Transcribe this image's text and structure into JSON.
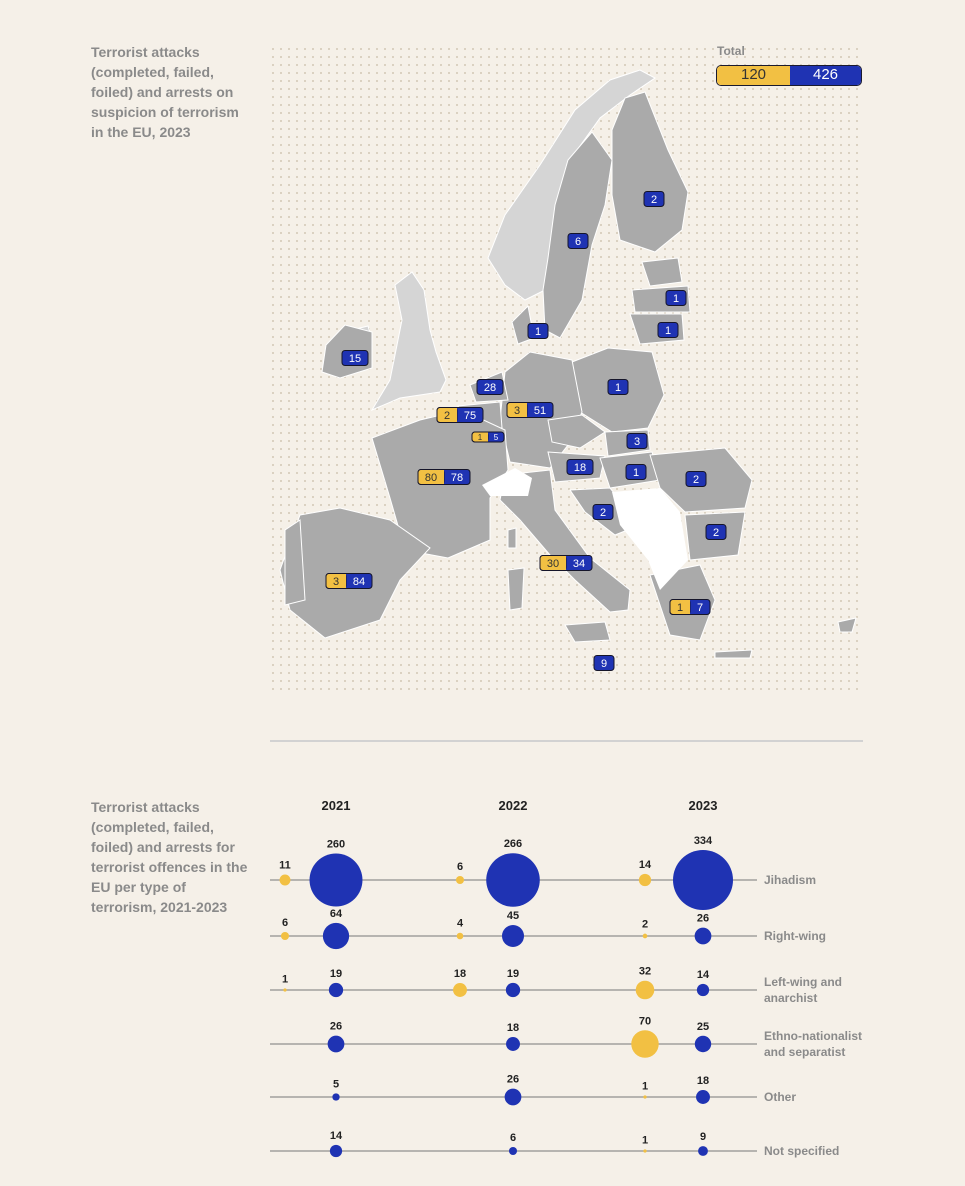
{
  "map": {
    "title": "Terrorist attacks (completed, failed, foiled) and arrests on suspicion of terrorism in the EU, 2023",
    "total_label": "Total",
    "total_attacks": "120",
    "total_arrests": "426",
    "colors": {
      "attacks": "#f2c043",
      "arrests": "#1f33b3",
      "eu": "#aaaaaa",
      "non_eu": "#d5d5d5",
      "no_data": "#ffffff"
    },
    "badges": [
      {
        "country": "Finland",
        "attacks": null,
        "arrests": 2
      },
      {
        "country": "Sweden",
        "attacks": null,
        "arrests": 6
      },
      {
        "country": "Latvia",
        "attacks": null,
        "arrests": 1
      },
      {
        "country": "Lithuania",
        "attacks": null,
        "arrests": 1
      },
      {
        "country": "Denmark",
        "attacks": null,
        "arrests": 1
      },
      {
        "country": "Ireland",
        "attacks": null,
        "arrests": 15
      },
      {
        "country": "Netherlands",
        "attacks": null,
        "arrests": 28
      },
      {
        "country": "Poland",
        "attacks": null,
        "arrests": 1
      },
      {
        "country": "Belgium",
        "attacks": 2,
        "arrests": 75
      },
      {
        "country": "Germany",
        "attacks": 3,
        "arrests": 51
      },
      {
        "country": "Luxembourg",
        "attacks": 1,
        "arrests": 5
      },
      {
        "country": "Slovakia",
        "attacks": null,
        "arrests": 3
      },
      {
        "country": "Austria",
        "attacks": null,
        "arrests": 18
      },
      {
        "country": "Hungary",
        "attacks": null,
        "arrests": 1
      },
      {
        "country": "France",
        "attacks": 80,
        "arrests": 78
      },
      {
        "country": "Romania",
        "attacks": null,
        "arrests": 2
      },
      {
        "country": "Croatia",
        "attacks": null,
        "arrests": 2
      },
      {
        "country": "Bulgaria",
        "attacks": null,
        "arrests": 2
      },
      {
        "country": "Italy",
        "attacks": 30,
        "arrests": 34
      },
      {
        "country": "Spain",
        "attacks": 3,
        "arrests": 84
      },
      {
        "country": "Greece",
        "attacks": 1,
        "arrests": 7
      },
      {
        "country": "Malta",
        "attacks": null,
        "arrests": 9
      }
    ]
  },
  "chart_data": {
    "type": "scatter",
    "title": "Terrorist attacks (completed, failed, foiled) and arrests for terrorist offences in the EU per type of terrorism, 2021-2023",
    "years": [
      "2021",
      "2022",
      "2023"
    ],
    "categories": [
      "Jihadism",
      "Right-wing",
      "Left-wing and anarchist",
      "Ethno-nationalist and separatist",
      "Other",
      "Not specified"
    ],
    "category_lines": [
      [
        "Jihadism"
      ],
      [
        "Right-wing"
      ],
      [
        "Left-wing and",
        "anarchist"
      ],
      [
        "Ethno-nationalist",
        "and separatist"
      ],
      [
        "Other"
      ],
      [
        "Not specified"
      ]
    ],
    "series": [
      {
        "name": "attacks",
        "color": "#f2c043",
        "values": [
          [
            11,
            6,
            14
          ],
          [
            6,
            4,
            2
          ],
          [
            1,
            18,
            32
          ],
          [
            null,
            null,
            70
          ],
          [
            null,
            null,
            1
          ],
          [
            null,
            null,
            1
          ]
        ]
      },
      {
        "name": "arrests",
        "color": "#1f33b3",
        "values": [
          [
            260,
            266,
            334
          ],
          [
            64,
            45,
            26
          ],
          [
            19,
            19,
            14
          ],
          [
            26,
            18,
            25
          ],
          [
            5,
            26,
            18
          ],
          [
            14,
            6,
            9
          ]
        ]
      }
    ]
  }
}
